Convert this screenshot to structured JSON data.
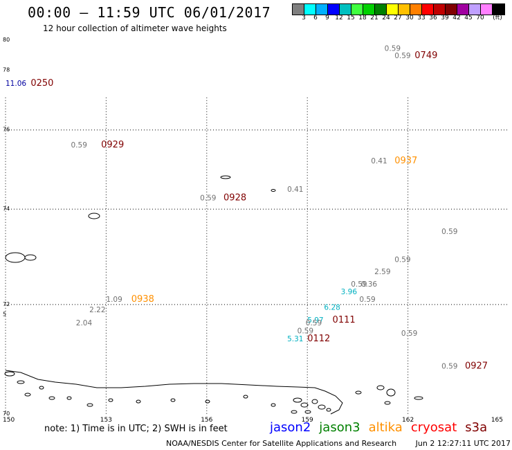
{
  "header": {
    "title": "00:00 – 11:59 UTC 06/01/2017",
    "subtitle": "12 hour collection of altimeter wave heights"
  },
  "colorbar": {
    "colors": [
      "#7f7f7f",
      "#00ffff",
      "#00b0ff",
      "#0000ff",
      "#00c0c0",
      "#40ff40",
      "#00d000",
      "#008000",
      "#ffff00",
      "#ffc000",
      "#ff8000",
      "#ff0000",
      "#c00000",
      "#800000",
      "#a000a0",
      "#c0a0ff",
      "#ff80ff",
      "#000000"
    ],
    "labels": [
      "3",
      "6",
      "9",
      "12",
      "15",
      "18",
      "21",
      "24",
      "27",
      "30",
      "33",
      "36",
      "39",
      "42",
      "45",
      "70",
      "(ft)"
    ]
  },
  "axes": {
    "x_ticks": [
      "150",
      "153",
      "156",
      "159",
      "162",
      "165"
    ],
    "y_ticks": [
      "80",
      "78",
      "76",
      "74",
      "72",
      "70"
    ],
    "y_side_label": "5"
  },
  "map_labels": [
    {
      "text": "0.59",
      "color": "#707070",
      "lon": 161.3,
      "lat": 78.95,
      "kind": "swh"
    },
    {
      "text": "0.59",
      "color": "#707070",
      "lon": 161.6,
      "lat": 78.55,
      "kind": "swh"
    },
    {
      "text": "0749",
      "color": "#800000",
      "lon": 162.2,
      "lat": 78.55,
      "kind": "time"
    },
    {
      "text": "11.06",
      "color": "#0000a0",
      "lon": 150.0,
      "lat": 77.4,
      "kind": "swh"
    },
    {
      "text": "0250",
      "color": "#800000",
      "lon": 150.75,
      "lat": 77.4,
      "kind": "time"
    },
    {
      "text": "0.59",
      "color": "#707070",
      "lon": 151.95,
      "lat": 75.52,
      "kind": "swh"
    },
    {
      "text": "0929",
      "color": "#800000",
      "lon": 152.85,
      "lat": 75.52,
      "kind": "time"
    },
    {
      "text": "0.41",
      "color": "#707070",
      "lon": 160.9,
      "lat": 75.1,
      "kind": "swh"
    },
    {
      "text": "0937",
      "color": "#ff9000",
      "lon": 161.6,
      "lat": 75.1,
      "kind": "time"
    },
    {
      "text": "0.41",
      "color": "#707070",
      "lon": 158.4,
      "lat": 74.4,
      "kind": "swh"
    },
    {
      "text": "0.59",
      "color": "#707070",
      "lon": 155.8,
      "lat": 74.2,
      "kind": "swh"
    },
    {
      "text": "0928",
      "color": "#800000",
      "lon": 156.5,
      "lat": 74.2,
      "kind": "time"
    },
    {
      "text": "0.59",
      "color": "#707070",
      "lon": 163.0,
      "lat": 73.45,
      "kind": "swh"
    },
    {
      "text": "0.59",
      "color": "#707070",
      "lon": 161.6,
      "lat": 72.85,
      "kind": "swh"
    },
    {
      "text": "2.59",
      "color": "#707070",
      "lon": 161.0,
      "lat": 72.6,
      "kind": "swh"
    },
    {
      "text": "0.59",
      "color": "#707070",
      "lon": 160.3,
      "lat": 72.35,
      "kind": "swh"
    },
    {
      "text": "0.36",
      "color": "#707070",
      "lon": 160.6,
      "lat": 72.35,
      "kind": "swh"
    },
    {
      "text": "3.96",
      "color": "#00b0c0",
      "lon": 160.0,
      "lat": 72.2,
      "kind": "swh"
    },
    {
      "text": "0.59",
      "color": "#707070",
      "lon": 160.55,
      "lat": 72.05,
      "kind": "swh"
    },
    {
      "text": "1.09",
      "color": "#707070",
      "lon": 153.0,
      "lat": 72.05,
      "kind": "swh"
    },
    {
      "text": "0938",
      "color": "#ff9000",
      "lon": 153.75,
      "lat": 72.05,
      "kind": "time"
    },
    {
      "text": "2.22",
      "color": "#707070",
      "lon": 152.5,
      "lat": 71.85,
      "kind": "swh"
    },
    {
      "text": "2.04",
      "color": "#707070",
      "lon": 152.1,
      "lat": 71.6,
      "kind": "swh"
    },
    {
      "text": "6.28",
      "color": "#00b0c0",
      "lon": 159.5,
      "lat": 71.9,
      "kind": "swh"
    },
    {
      "text": "0111",
      "color": "#800000",
      "lon": 159.75,
      "lat": 71.65,
      "kind": "time"
    },
    {
      "text": "5.97",
      "color": "#00b0c0",
      "lon": 159.0,
      "lat": 71.65,
      "kind": "swh"
    },
    {
      "text": "0.59",
      "color": "#707070",
      "lon": 158.95,
      "lat": 71.6,
      "kind": "swh"
    },
    {
      "text": "0.59",
      "color": "#707070",
      "lon": 158.7,
      "lat": 71.45,
      "kind": "swh"
    },
    {
      "text": "5.31",
      "color": "#00b0c0",
      "lon": 158.4,
      "lat": 71.3,
      "kind": "swh"
    },
    {
      "text": "0112",
      "color": "#800000",
      "lon": 159.0,
      "lat": 71.3,
      "kind": "time"
    },
    {
      "text": "0.59",
      "color": "#707070",
      "lon": 161.8,
      "lat": 71.4,
      "kind": "swh"
    },
    {
      "text": "0.59",
      "color": "#707070",
      "lon": 163.0,
      "lat": 70.8,
      "kind": "swh"
    },
    {
      "text": "0927",
      "color": "#800000",
      "lon": 163.7,
      "lat": 70.8,
      "kind": "time"
    }
  ],
  "footer": {
    "note": "note: 1) Time is in UTC; 2) SWH is in feet",
    "satellites": [
      {
        "name": "jason2",
        "color": "#0000ff"
      },
      {
        "name": "jason3",
        "color": "#008000"
      },
      {
        "name": "altika",
        "color": "#ff9000"
      },
      {
        "name": "cryosat",
        "color": "#ff0000"
      },
      {
        "name": "s3a",
        "color": "#800000"
      }
    ],
    "credit": "NOAA/NESDIS Center for Satellite Applications and Research",
    "timestamp": "Jun  2 12:27:11 UTC 2017"
  }
}
